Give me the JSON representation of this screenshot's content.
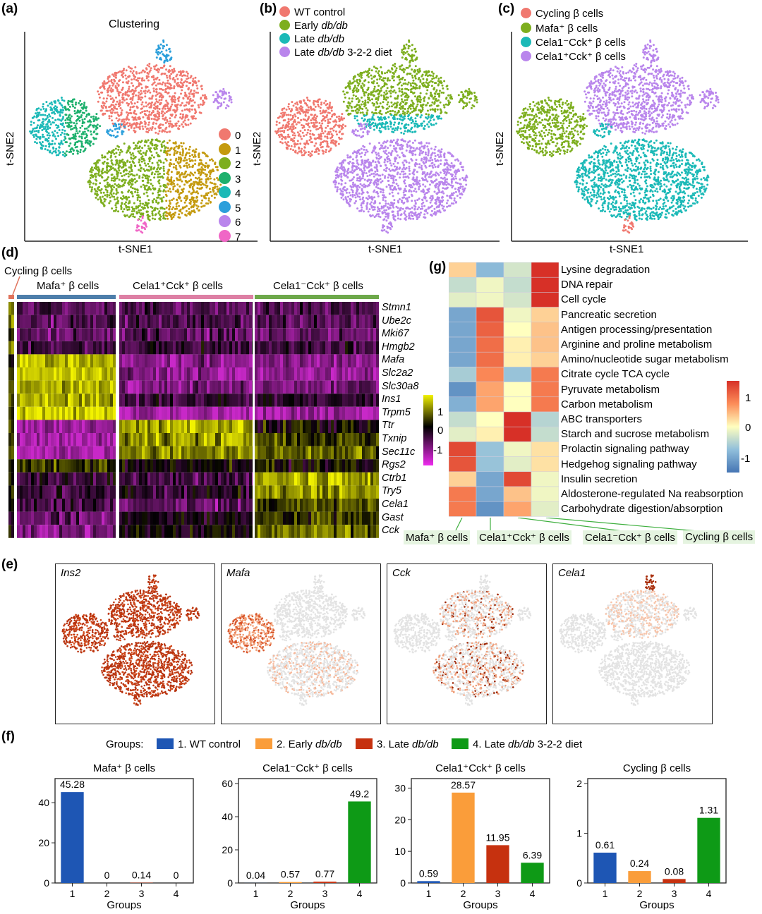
{
  "panels": {
    "a": {
      "label": "(a)",
      "title": "Clustering",
      "xlabel": "t-SNE1",
      "ylabel": "t-SNE2",
      "legend": [
        {
          "name": "0",
          "color": "#F0786F"
        },
        {
          "name": "1",
          "color": "#C49A0E"
        },
        {
          "name": "2",
          "color": "#7DAE1E"
        },
        {
          "name": "3",
          "color": "#1DB06D"
        },
        {
          "name": "4",
          "color": "#1BB9B7"
        },
        {
          "name": "5",
          "color": "#2C9FDB"
        },
        {
          "name": "6",
          "color": "#B985EC"
        },
        {
          "name": "7",
          "color": "#F066C6"
        }
      ]
    },
    "b": {
      "label": "(b)",
      "xlabel": "t-SNE1",
      "ylabel": "t-SNE2",
      "legend": [
        {
          "pre": "WT control",
          "ital": "",
          "post": "",
          "color": "#F0786F"
        },
        {
          "pre": "Early ",
          "ital": "db/db",
          "post": "",
          "color": "#7DAE1E"
        },
        {
          "pre": "Late ",
          "ital": "db/db",
          "post": "",
          "color": "#1BB9B7"
        },
        {
          "pre": "Late ",
          "ital": "db/db",
          "post": " 3-2-2 diet",
          "color": "#B985EC"
        }
      ]
    },
    "c": {
      "label": "(c)",
      "xlabel": "t-SNE1",
      "ylabel": "t-SNE2",
      "legend": [
        {
          "text": "Cycling β cells",
          "color": "#F0786F"
        },
        {
          "text": "Mafa⁺ β cells",
          "color": "#7DAE1E"
        },
        {
          "text": "Cela1⁻Cck⁺ β cells",
          "color": "#1BB9B7"
        },
        {
          "text": "Cela1⁺Cck⁺ β cells",
          "color": "#B985EC"
        }
      ]
    },
    "d": {
      "label": "(d)",
      "groups": [
        {
          "name": "Cycling β cells",
          "color": "#E0735C"
        },
        {
          "name": "Mafa⁺ β cells",
          "color": "#4D7EAA"
        },
        {
          "name": "Cela1⁺Cck⁺ β cells",
          "color": "#DD7FA4"
        },
        {
          "name": "Cela1⁻Cck⁺ β cells",
          "color": "#6DA84A"
        }
      ],
      "genes": [
        "Stmn1",
        "Ube2c",
        "Mki67",
        "Hmgb2",
        "Mafa",
        "Slc2a2",
        "Slc30a8",
        "Ins1",
        "Trpm5",
        "Ttr",
        "Txnip",
        "Sec11c",
        "Rgs2",
        "Ctrb1",
        "Try5",
        "Cela1",
        "Gast",
        "Cck"
      ],
      "colorbar": {
        "ticks": [
          "1",
          "0",
          "-1"
        ]
      }
    },
    "g": {
      "label": "(g)",
      "pathways": [
        "Lysine degradation",
        "DNA repair",
        "Cell cycle",
        "Pancreatic secretion",
        "Antigen processing/presentation",
        "Arginine and proline metabolism",
        "Amino/nucleotide sugar metabolism",
        "Citrate cycle TCA cycle",
        "Pyruvate metabolism",
        "Carbon metabolism",
        "ABC transporters",
        "Starch and sucrose metabolism",
        "Prolactin signaling pathway",
        "Hedgehog signaling pathway",
        "Insulin secretion",
        "Aldosterone-regulated Na reabsorption",
        "Carbohydrate digestion/absorption"
      ],
      "columns": [
        "Mafa⁺ β cells",
        "Cela1⁺Cck⁺ β cells",
        "Cela1⁻Cck⁺ β cells",
        "Cycling β cells"
      ],
      "matrix": [
        [
          0.3,
          -0.8,
          -0.3,
          1.5
        ],
        [
          -0.4,
          -0.1,
          -0.4,
          1.5
        ],
        [
          -0.2,
          -0.1,
          -0.3,
          1.5
        ],
        [
          -1.0,
          1.2,
          -0.1,
          0.3
        ],
        [
          -1.0,
          1.1,
          0.0,
          0.4
        ],
        [
          -1.0,
          1.0,
          0.1,
          0.4
        ],
        [
          -1.0,
          1.0,
          0.1,
          0.3
        ],
        [
          -0.6,
          0.8,
          -0.7,
          0.9
        ],
        [
          -1.2,
          0.6,
          0.0,
          0.9
        ],
        [
          -0.9,
          0.6,
          0.0,
          0.9
        ],
        [
          -0.4,
          0.0,
          1.5,
          -0.5
        ],
        [
          -0.2,
          0.1,
          1.5,
          -0.4
        ],
        [
          1.3,
          -0.7,
          -0.1,
          0.2
        ],
        [
          1.2,
          -0.7,
          -0.2,
          0.2
        ],
        [
          0.3,
          -1.0,
          1.3,
          -0.1
        ],
        [
          0.9,
          -1.0,
          0.4,
          -0.1
        ],
        [
          0.9,
          -1.2,
          0.6,
          -0.2
        ]
      ],
      "colorbar": {
        "ticks": [
          "1",
          "0",
          "-1"
        ]
      }
    },
    "e": {
      "label": "(e)",
      "genes": [
        "Ins2",
        "Mafa",
        "Cck",
        "Cela1"
      ]
    },
    "f": {
      "label": "(f)",
      "legend_title": "Groups:",
      "groups": [
        {
          "pre": "1. WT control",
          "ital": "",
          "post": "",
          "color": "#1E56B4"
        },
        {
          "pre": "2. Early ",
          "ital": "db/db",
          "post": "",
          "color": "#FA9D3A"
        },
        {
          "pre": "3. Late ",
          "ital": "db/db",
          "post": "",
          "color": "#C6310F"
        },
        {
          "pre": "4. Late ",
          "ital": "db/db",
          "post": " 3-2-2 diet",
          "color": "#0E9A16"
        }
      ],
      "xlabel": "Groups"
    }
  },
  "chart_data": [
    {
      "type": "bar",
      "title": "Mafa⁺ β cells",
      "xlabel": "Groups",
      "categories": [
        "1",
        "2",
        "3",
        "4"
      ],
      "values": [
        45.28,
        0,
        0.14,
        0
      ],
      "labels": [
        "45.28",
        "0",
        "0.14",
        "0"
      ],
      "ylim": [
        0,
        52
      ],
      "yticks": [
        0,
        20,
        40
      ]
    },
    {
      "type": "bar",
      "title": "Cela1⁻Cck⁺ β cells",
      "xlabel": "Groups",
      "categories": [
        "1",
        "2",
        "3",
        "4"
      ],
      "values": [
        0.04,
        0.57,
        0.77,
        49.2
      ],
      "labels": [
        "0.04",
        "0.57",
        "0.77",
        "49.2"
      ],
      "ylim": [
        0,
        63
      ],
      "yticks": [
        0,
        20,
        40,
        60
      ]
    },
    {
      "type": "bar",
      "title": "Cela1⁺Cck⁺ β cells",
      "xlabel": "Groups",
      "categories": [
        "1",
        "2",
        "3",
        "4"
      ],
      "values": [
        0.59,
        28.57,
        11.95,
        6.39
      ],
      "labels": [
        "0.59",
        "28.57",
        "11.95",
        "6.39"
      ],
      "ylim": [
        0,
        33
      ],
      "yticks": [
        0,
        10,
        20,
        30
      ]
    },
    {
      "type": "bar",
      "title": "Cycling β cells",
      "xlabel": "Groups",
      "categories": [
        "1",
        "2",
        "3",
        "4"
      ],
      "values": [
        0.61,
        0.24,
        0.08,
        1.31
      ],
      "labels": [
        "0.61",
        "0.24",
        "0.08",
        "1.31"
      ],
      "ylim": [
        0,
        2.1
      ],
      "yticks": [
        0,
        1,
        2
      ]
    }
  ]
}
